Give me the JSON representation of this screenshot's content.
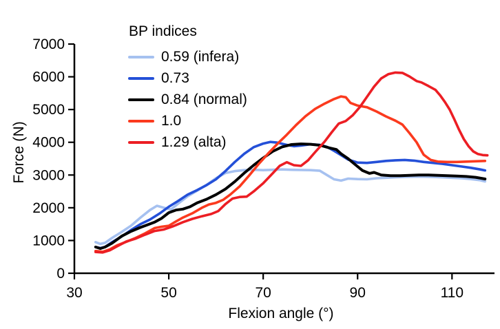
{
  "chart_data": {
    "type": "line",
    "title": "",
    "xlabel": "Flexion angle (°)",
    "ylabel": "Force (N)",
    "xlim": [
      30,
      119
    ],
    "ylim": [
      0,
      7000
    ],
    "x_ticks": [
      30,
      50,
      70,
      90,
      110
    ],
    "y_ticks": [
      0,
      1000,
      2000,
      3000,
      4000,
      5000,
      6000,
      7000
    ],
    "grid": false,
    "legend_title": "BP indices",
    "legend_position": "top-left-inside",
    "axis_color": "#000000",
    "series": [
      {
        "name": "0.59 (infera)",
        "color": "#a6c1f0",
        "points": [
          [
            34.5,
            950
          ],
          [
            35.5,
            895
          ],
          [
            36.5,
            930
          ],
          [
            38,
            1080
          ],
          [
            40,
            1260
          ],
          [
            42,
            1450
          ],
          [
            44,
            1700
          ],
          [
            46,
            1930
          ],
          [
            47.5,
            2060
          ],
          [
            49,
            2000
          ],
          [
            50.5,
            1950
          ],
          [
            52,
            2130
          ],
          [
            54,
            2350
          ],
          [
            56,
            2520
          ],
          [
            58,
            2700
          ],
          [
            60,
            2900
          ],
          [
            62,
            3060
          ],
          [
            64,
            3120
          ],
          [
            66,
            3150
          ],
          [
            68,
            3160
          ],
          [
            70,
            3150
          ],
          [
            72,
            3160
          ],
          [
            74,
            3170
          ],
          [
            76,
            3160
          ],
          [
            78,
            3155
          ],
          [
            80,
            3150
          ],
          [
            82,
            3130
          ],
          [
            83.5,
            3000
          ],
          [
            85,
            2870
          ],
          [
            86.5,
            2830
          ],
          [
            88,
            2890
          ],
          [
            90,
            2875
          ],
          [
            92,
            2870
          ],
          [
            94,
            2900
          ],
          [
            96,
            2915
          ],
          [
            98,
            2930
          ],
          [
            100,
            2940
          ],
          [
            102,
            2950
          ],
          [
            104,
            2950
          ],
          [
            106,
            2940
          ],
          [
            108,
            2930
          ],
          [
            110,
            2915
          ],
          [
            112,
            2900
          ],
          [
            114,
            2875
          ],
          [
            116,
            2840
          ],
          [
            117,
            2805
          ]
        ]
      },
      {
        "name": "0.73",
        "color": "#2450d8",
        "points": [
          [
            34.5,
            800
          ],
          [
            35.5,
            770
          ],
          [
            36.5,
            805
          ],
          [
            38,
            950
          ],
          [
            40,
            1120
          ],
          [
            42,
            1320
          ],
          [
            44,
            1500
          ],
          [
            46,
            1640
          ],
          [
            48,
            1820
          ],
          [
            50,
            2030
          ],
          [
            52,
            2210
          ],
          [
            54,
            2400
          ],
          [
            56,
            2540
          ],
          [
            58,
            2690
          ],
          [
            60,
            2870
          ],
          [
            62,
            3120
          ],
          [
            64,
            3400
          ],
          [
            66,
            3650
          ],
          [
            68,
            3850
          ],
          [
            70,
            3960
          ],
          [
            71.5,
            4010
          ],
          [
            73,
            3990
          ],
          [
            75,
            3920
          ],
          [
            76.5,
            3880
          ],
          [
            78,
            3900
          ],
          [
            80,
            3940
          ],
          [
            82,
            3920
          ],
          [
            83.5,
            3860
          ],
          [
            85,
            3740
          ],
          [
            86.5,
            3610
          ],
          [
            88,
            3470
          ],
          [
            90,
            3380
          ],
          [
            92,
            3370
          ],
          [
            94,
            3400
          ],
          [
            96,
            3430
          ],
          [
            98,
            3450
          ],
          [
            100,
            3460
          ],
          [
            102,
            3440
          ],
          [
            104,
            3400
          ],
          [
            106,
            3370
          ],
          [
            108,
            3340
          ],
          [
            110,
            3300
          ],
          [
            112,
            3260
          ],
          [
            114,
            3220
          ],
          [
            116,
            3170
          ],
          [
            117,
            3140
          ]
        ]
      },
      {
        "name": "0.84 (normal)",
        "color": "#000000",
        "points": [
          [
            34.5,
            800
          ],
          [
            35.5,
            755
          ],
          [
            36.5,
            800
          ],
          [
            38,
            920
          ],
          [
            40,
            1130
          ],
          [
            42,
            1280
          ],
          [
            44,
            1400
          ],
          [
            45.5,
            1480
          ],
          [
            47,
            1560
          ],
          [
            48.5,
            1680
          ],
          [
            50,
            1850
          ],
          [
            51.5,
            1930
          ],
          [
            53,
            1960
          ],
          [
            54.5,
            2030
          ],
          [
            56,
            2150
          ],
          [
            58,
            2260
          ],
          [
            60,
            2400
          ],
          [
            62,
            2570
          ],
          [
            64,
            2800
          ],
          [
            66,
            3060
          ],
          [
            68,
            3300
          ],
          [
            70,
            3520
          ],
          [
            72,
            3720
          ],
          [
            74,
            3860
          ],
          [
            76,
            3930
          ],
          [
            78,
            3950
          ],
          [
            80,
            3940
          ],
          [
            82,
            3910
          ],
          [
            84,
            3830
          ],
          [
            85.5,
            3780
          ],
          [
            86.5,
            3650
          ],
          [
            88,
            3500
          ],
          [
            89.5,
            3320
          ],
          [
            91,
            3140
          ],
          [
            92.5,
            3050
          ],
          [
            93.5,
            3080
          ],
          [
            95,
            3000
          ],
          [
            97,
            2980
          ],
          [
            99,
            2980
          ],
          [
            101,
            2990
          ],
          [
            103,
            3000
          ],
          [
            105,
            3000
          ],
          [
            107,
            2990
          ],
          [
            109,
            2980
          ],
          [
            111,
            2970
          ],
          [
            113,
            2955
          ],
          [
            115,
            2930
          ],
          [
            117,
            2880
          ]
        ]
      },
      {
        "name": "1.0",
        "color": "#fb3a1e",
        "points": [
          [
            34.5,
            680
          ],
          [
            36,
            655
          ],
          [
            37.5,
            730
          ],
          [
            39,
            850
          ],
          [
            41,
            960
          ],
          [
            43,
            1080
          ],
          [
            45,
            1220
          ],
          [
            47,
            1380
          ],
          [
            48.5,
            1420
          ],
          [
            50,
            1450
          ],
          [
            51.5,
            1580
          ],
          [
            53,
            1700
          ],
          [
            55,
            1830
          ],
          [
            57,
            2000
          ],
          [
            58.5,
            2100
          ],
          [
            60,
            2150
          ],
          [
            61.5,
            2240
          ],
          [
            63,
            2400
          ],
          [
            65,
            2650
          ],
          [
            67,
            2980
          ],
          [
            69,
            3330
          ],
          [
            71,
            3650
          ],
          [
            73,
            3950
          ],
          [
            75,
            4230
          ],
          [
            77,
            4530
          ],
          [
            79,
            4800
          ],
          [
            81,
            5020
          ],
          [
            83,
            5180
          ],
          [
            85,
            5320
          ],
          [
            86.5,
            5400
          ],
          [
            87.5,
            5375
          ],
          [
            88.5,
            5200
          ],
          [
            90,
            5120
          ],
          [
            92,
            5070
          ],
          [
            94,
            4940
          ],
          [
            96,
            4790
          ],
          [
            98,
            4660
          ],
          [
            99.5,
            4540
          ],
          [
            101,
            4280
          ],
          [
            102.5,
            4000
          ],
          [
            104,
            3620
          ],
          [
            105.5,
            3460
          ],
          [
            107,
            3410
          ],
          [
            109,
            3400
          ],
          [
            111,
            3400
          ],
          [
            113,
            3410
          ],
          [
            115,
            3420
          ],
          [
            117,
            3430
          ]
        ]
      },
      {
        "name": "1.29 (alta)",
        "color": "#ec1e24",
        "points": [
          [
            34.5,
            650
          ],
          [
            36,
            635
          ],
          [
            37.5,
            700
          ],
          [
            39,
            820
          ],
          [
            41,
            970
          ],
          [
            43,
            1060
          ],
          [
            45,
            1180
          ],
          [
            47,
            1290
          ],
          [
            49,
            1340
          ],
          [
            51,
            1440
          ],
          [
            53,
            1560
          ],
          [
            55,
            1660
          ],
          [
            57,
            1740
          ],
          [
            59,
            1810
          ],
          [
            60.5,
            1900
          ],
          [
            62,
            2110
          ],
          [
            63.5,
            2280
          ],
          [
            65,
            2330
          ],
          [
            66.5,
            2340
          ],
          [
            68,
            2500
          ],
          [
            70,
            2750
          ],
          [
            72,
            3050
          ],
          [
            73.5,
            3280
          ],
          [
            75,
            3390
          ],
          [
            76.5,
            3300
          ],
          [
            78,
            3280
          ],
          [
            79.5,
            3450
          ],
          [
            81,
            3700
          ],
          [
            83,
            4020
          ],
          [
            84.5,
            4300
          ],
          [
            86,
            4570
          ],
          [
            87.5,
            4650
          ],
          [
            89,
            4830
          ],
          [
            90.5,
            5080
          ],
          [
            92,
            5390
          ],
          [
            93.5,
            5700
          ],
          [
            95,
            5950
          ],
          [
            96.5,
            6080
          ],
          [
            98,
            6130
          ],
          [
            99.5,
            6120
          ],
          [
            101,
            6010
          ],
          [
            102.5,
            5870
          ],
          [
            103.5,
            5830
          ],
          [
            105,
            5720
          ],
          [
            106.5,
            5600
          ],
          [
            107.5,
            5430
          ],
          [
            108.5,
            5230
          ],
          [
            109.5,
            5000
          ],
          [
            110.5,
            4700
          ],
          [
            111.5,
            4380
          ],
          [
            112.5,
            4100
          ],
          [
            113.5,
            3880
          ],
          [
            114.5,
            3720
          ],
          [
            115.5,
            3640
          ],
          [
            116.5,
            3610
          ],
          [
            117.5,
            3600
          ]
        ]
      }
    ]
  }
}
